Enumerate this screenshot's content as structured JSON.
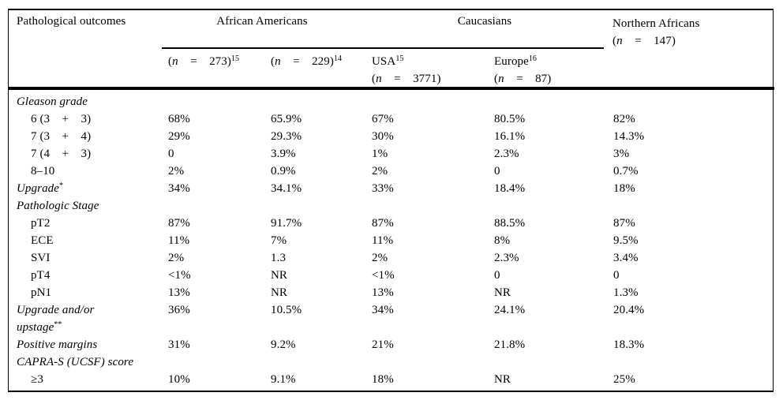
{
  "table": {
    "header": {
      "col1": "Pathological outcomes",
      "groups": [
        {
          "label": "African Americans"
        },
        {
          "label": "Caucasians"
        }
      ],
      "northern": {
        "line1": "Northern Africans",
        "o": "(",
        "n": "n",
        "r": "    =    147)"
      },
      "subcols": [
        {
          "o": "(",
          "n": "n",
          "r": "    =    273)",
          "sup": "15"
        },
        {
          "o": "(",
          "n": "n",
          "r": "    =    229)",
          "sup": "14"
        },
        {
          "name": "USA",
          "sup": "15",
          "o": "(",
          "n": "n",
          "r": "    =    3771)"
        },
        {
          "name": "Europe",
          "sup": "16",
          "o": "(",
          "n": "n",
          "r": "    =    87)"
        }
      ]
    },
    "rows": [
      {
        "style": "section",
        "label": "Gleason grade",
        "values": []
      },
      {
        "style": "item",
        "label": "6 (3    +    3)",
        "values": [
          "68%",
          "65.9%",
          "67%",
          "80.5%",
          "82%"
        ]
      },
      {
        "style": "item",
        "label": "7 (3    +    4)",
        "values": [
          "29%",
          "29.3%",
          "30%",
          "16.1%",
          "14.3%"
        ]
      },
      {
        "style": "item",
        "label": "7 (4    +    3)",
        "values": [
          "0",
          "3.9%",
          "1%",
          "2.3%",
          "3%"
        ]
      },
      {
        "style": "item",
        "label": "8–10",
        "values": [
          "2%",
          "0.9%",
          "2%",
          "0",
          "0.7%"
        ]
      },
      {
        "style": "irow",
        "label": "Upgrade",
        "sup": "*",
        "values": [
          "34%",
          "34.1%",
          "33%",
          "18.4%",
          "18%"
        ]
      },
      {
        "style": "section",
        "label": "Pathologic Stage",
        "values": []
      },
      {
        "style": "item",
        "label": "pT2",
        "values": [
          "87%",
          "91.7%",
          "87%",
          "88.5%",
          "87%"
        ]
      },
      {
        "style": "item",
        "label": "ECE",
        "values": [
          "11%",
          "7%",
          "11%",
          "8%",
          "9.5%"
        ]
      },
      {
        "style": "item",
        "label": "SVI",
        "values": [
          "2%",
          "1.3",
          "2%",
          "2.3%",
          "3.4%"
        ]
      },
      {
        "style": "item",
        "label": "pT4",
        "values": [
          "<1%",
          "NR",
          "<1%",
          "0",
          "0"
        ]
      },
      {
        "style": "item",
        "label": "pN1",
        "values": [
          "13%",
          "NR",
          "13%",
          "NR",
          "1.3%"
        ]
      },
      {
        "style": "irow",
        "label": "Upgrade and/or\nupstage",
        "sup": "**",
        "values": [
          "36%",
          "10.5%",
          "34%",
          "24.1%",
          "20.4%"
        ]
      },
      {
        "style": "irow",
        "label": "Positive margins",
        "values": [
          "31%",
          "9.2%",
          "21%",
          "21.8%",
          "18.3%"
        ]
      },
      {
        "style": "section",
        "label": "CAPRA-S (UCSF) score",
        "values": []
      },
      {
        "style": "item",
        "label": "≥3",
        "values": [
          "10%",
          "9.1%",
          "18%",
          "NR",
          "25%"
        ]
      }
    ]
  }
}
